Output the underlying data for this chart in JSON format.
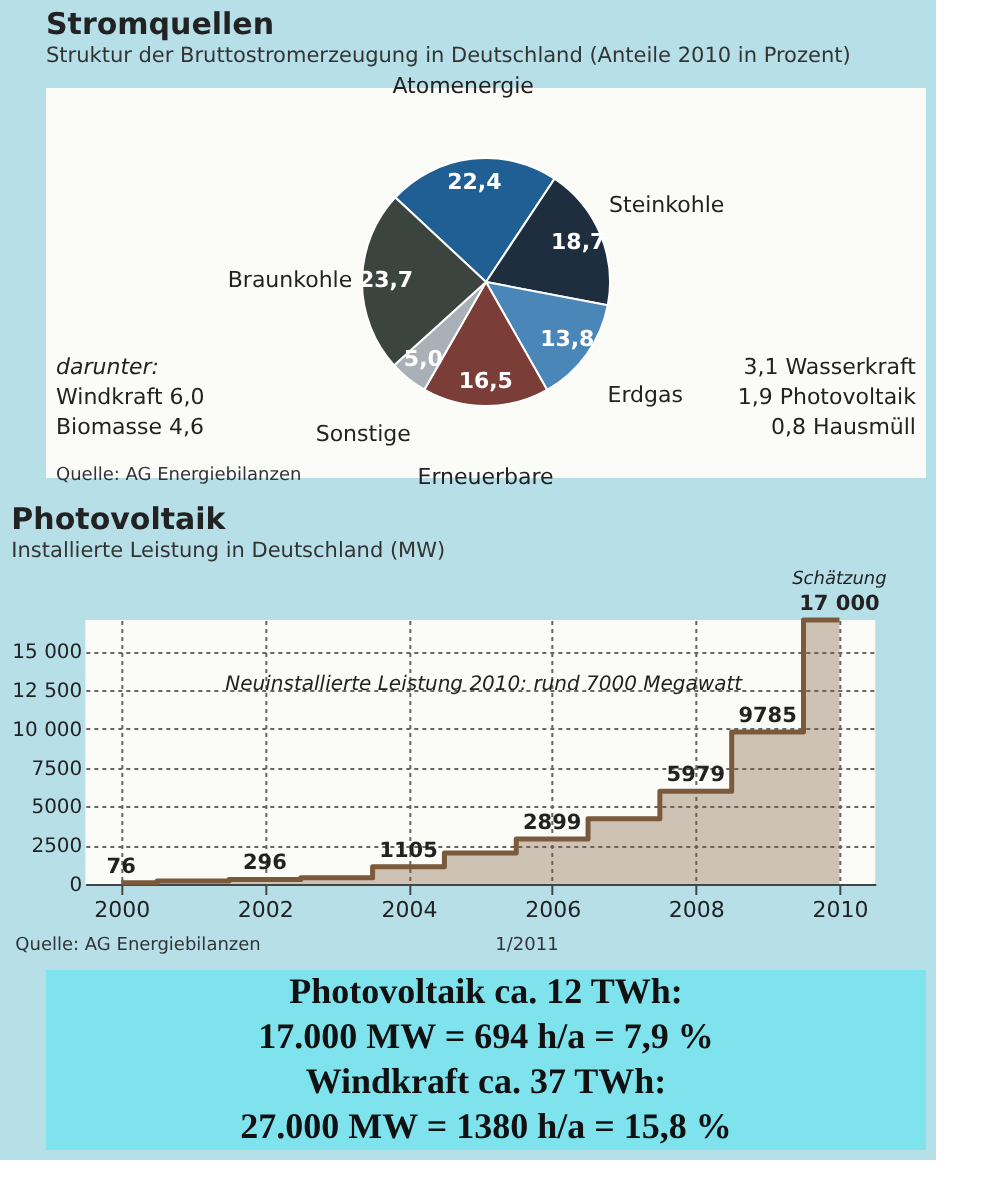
{
  "chart_data": [
    {
      "type": "pie",
      "title": "Stromquellen",
      "subtitle": "Struktur der Bruttostromerzeugung in Deutschland (Anteile 2010 in Prozent)",
      "categories": [
        "Atomenergie",
        "Steinkohle",
        "Erdgas",
        "Erneuerbare",
        "Sonstige",
        "Braunkohle"
      ],
      "values": [
        22.4,
        18.7,
        13.8,
        16.5,
        5.0,
        23.7
      ],
      "value_labels": [
        "22,4",
        "18,7",
        "13,8",
        "16,5",
        "5,0",
        "23,7"
      ],
      "colors": [
        "#1f5f93",
        "#1e2e3e",
        "#4b86b8",
        "#7a3d37",
        "#a9b0b8",
        "#3c4440"
      ],
      "annotations": [
        "darunter:",
        "Windkraft 6,0",
        "Biomasse 4,6",
        "3,1 Wasserkraft",
        "1,9 Photovoltaik",
        "0,8 Hausmüll",
        "Quelle: AG Energiebilanzen"
      ]
    },
    {
      "type": "step",
      "title": "Photovoltaik",
      "subtitle": "Installierte Leistung in Deutschland (MW)",
      "x": [
        2000,
        2001,
        2002,
        2003,
        2004,
        2005,
        2006,
        2007,
        2008,
        2009,
        2010
      ],
      "values": [
        76,
        200,
        296,
        400,
        1105,
        2000,
        2899,
        4200,
        5979,
        9785,
        17000
      ],
      "value_labels": [
        "76",
        null,
        "296",
        null,
        "1105",
        null,
        "2899",
        null,
        "5979",
        "9785",
        "17 000"
      ],
      "color": "#7a5a3a",
      "xlim": [
        1999.5,
        2010.5
      ],
      "xticks": [
        2000,
        2002,
        2004,
        2006,
        2008,
        2010
      ],
      "ylim": [
        0,
        17000
      ],
      "yticks": [
        0,
        2500,
        {
          "value": 5000,
          "label": "5000"
        },
        7500,
        {
          "value": 10000,
          "label": "10 000"
        },
        {
          "value": 12500,
          "label": "12 500"
        },
        {
          "value": 15000,
          "label": "15 000"
        }
      ],
      "grid": true,
      "annotations": [
        {
          "text": "Schätzung",
          "x": 2010,
          "y": 17000
        },
        "Neuinstallierte Leistung 2010: rund 7000 Megawatt",
        "Quelle: AG Energiebilanzen",
        "1/2011"
      ]
    },
    {
      "type": "other",
      "annotations": [
        "Photovoltaik  ca. 12 TWh:",
        "17.000 MW = 694 h/a = 7,9 %",
        "Windkraft ca. 37 TWh:",
        "27.000 MW = 1380 h/a = 15,8 %"
      ]
    }
  ]
}
